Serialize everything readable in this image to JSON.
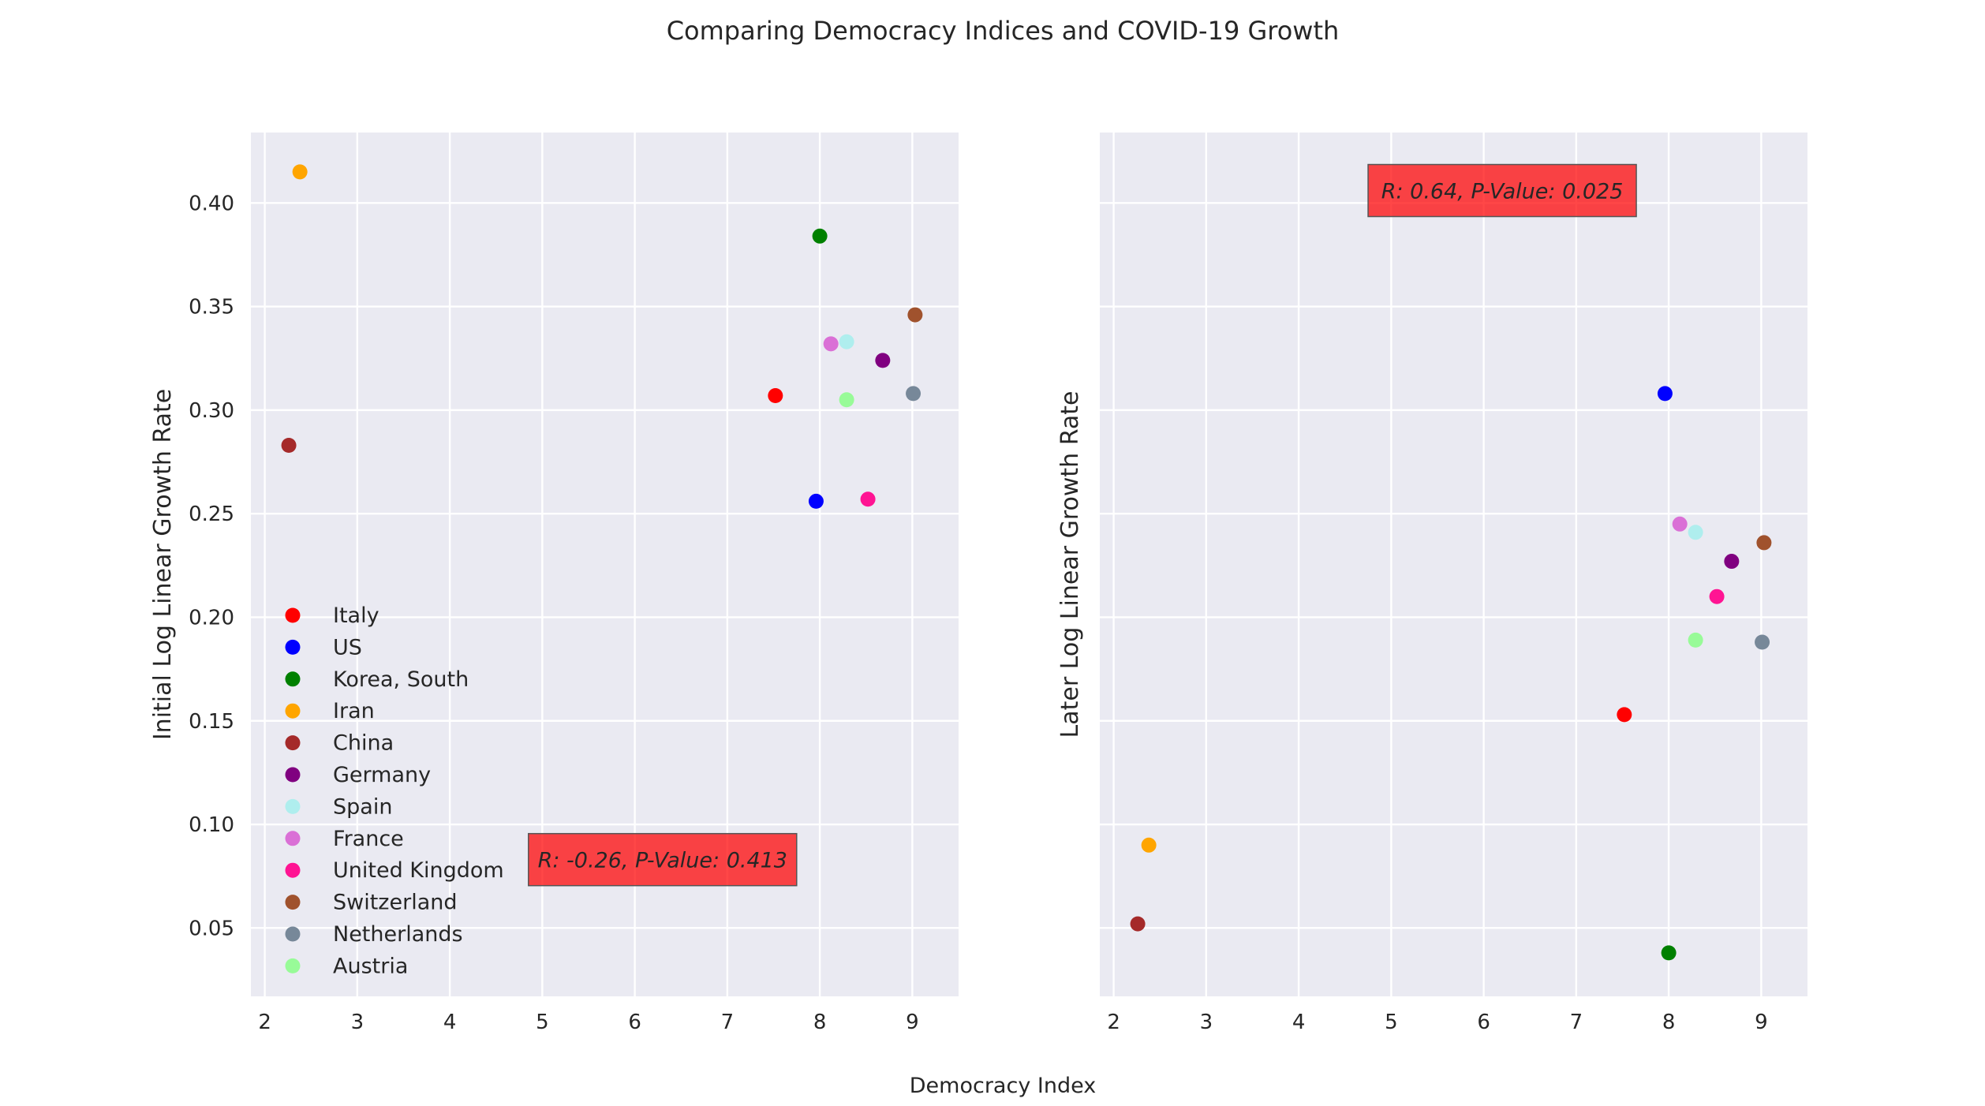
{
  "suptitle": "Comparing Democracy Indices and COVID-19 Growth",
  "supxlabel": "Democracy Index",
  "legend_placement": "lower-left of left panel",
  "chart_data": [
    {
      "type": "scatter",
      "ylabel": "Initial Log Linear Growth Rate",
      "xlim": [
        1.85,
        9.5
      ],
      "ylim": [
        0.017,
        0.434
      ],
      "xticks": [
        2,
        3,
        4,
        5,
        6,
        7,
        8,
        9
      ],
      "yticks": [
        0.05,
        0.1,
        0.15,
        0.2,
        0.25,
        0.3,
        0.35,
        0.4
      ],
      "ytick_labels": [
        "0.05",
        "0.10",
        "0.15",
        "0.20",
        "0.25",
        "0.30",
        "0.35",
        "0.40"
      ],
      "grid": true,
      "annotation": "R: -0.26, P-Value: 0.413",
      "annotation_pos": [
        6.3,
        0.083
      ],
      "series": [
        {
          "name": "Italy",
          "color": "#ff0000",
          "x": 7.52,
          "y": 0.307
        },
        {
          "name": "US",
          "color": "#0000ff",
          "x": 7.96,
          "y": 0.256
        },
        {
          "name": "Korea, South",
          "color": "#008000",
          "x": 8.0,
          "y": 0.384
        },
        {
          "name": "Iran",
          "color": "#ffa500",
          "x": 2.38,
          "y": 0.415
        },
        {
          "name": "China",
          "color": "#a52a2a",
          "x": 2.26,
          "y": 0.283
        },
        {
          "name": "Germany",
          "color": "#800080",
          "x": 8.68,
          "y": 0.324
        },
        {
          "name": "Spain",
          "color": "#afeeee",
          "x": 8.29,
          "y": 0.333
        },
        {
          "name": "France",
          "color": "#da70d6",
          "x": 8.12,
          "y": 0.332
        },
        {
          "name": "United Kingdom",
          "color": "#ff1493",
          "x": 8.52,
          "y": 0.257
        },
        {
          "name": "Switzerland",
          "color": "#a0522d",
          "x": 9.03,
          "y": 0.346
        },
        {
          "name": "Netherlands",
          "color": "#778899",
          "x": 9.01,
          "y": 0.308
        },
        {
          "name": "Austria",
          "color": "#98fb98",
          "x": 8.29,
          "y": 0.305
        }
      ]
    },
    {
      "type": "scatter",
      "ylabel": "Later Log Linear Growth Rate",
      "xlim": [
        1.85,
        9.5
      ],
      "ylim": [
        0.017,
        0.434
      ],
      "xticks": [
        2,
        3,
        4,
        5,
        6,
        7,
        8,
        9
      ],
      "grid": true,
      "annotation": "R: 0.64, P-Value: 0.025",
      "annotation_pos": [
        6.2,
        0.406
      ],
      "series": [
        {
          "name": "Italy",
          "color": "#ff0000",
          "x": 7.52,
          "y": 0.153
        },
        {
          "name": "US",
          "color": "#0000ff",
          "x": 7.96,
          "y": 0.308
        },
        {
          "name": "Korea, South",
          "color": "#008000",
          "x": 8.0,
          "y": 0.038
        },
        {
          "name": "Iran",
          "color": "#ffa500",
          "x": 2.38,
          "y": 0.09
        },
        {
          "name": "China",
          "color": "#a52a2a",
          "x": 2.26,
          "y": 0.052
        },
        {
          "name": "Germany",
          "color": "#800080",
          "x": 8.68,
          "y": 0.227
        },
        {
          "name": "Spain",
          "color": "#afeeee",
          "x": 8.29,
          "y": 0.241
        },
        {
          "name": "France",
          "color": "#da70d6",
          "x": 8.12,
          "y": 0.245
        },
        {
          "name": "United Kingdom",
          "color": "#ff1493",
          "x": 8.52,
          "y": 0.21
        },
        {
          "name": "Switzerland",
          "color": "#a0522d",
          "x": 9.03,
          "y": 0.236
        },
        {
          "name": "Netherlands",
          "color": "#778899",
          "x": 9.01,
          "y": 0.188
        },
        {
          "name": "Austria",
          "color": "#98fb98",
          "x": 8.29,
          "y": 0.189
        }
      ]
    }
  ]
}
